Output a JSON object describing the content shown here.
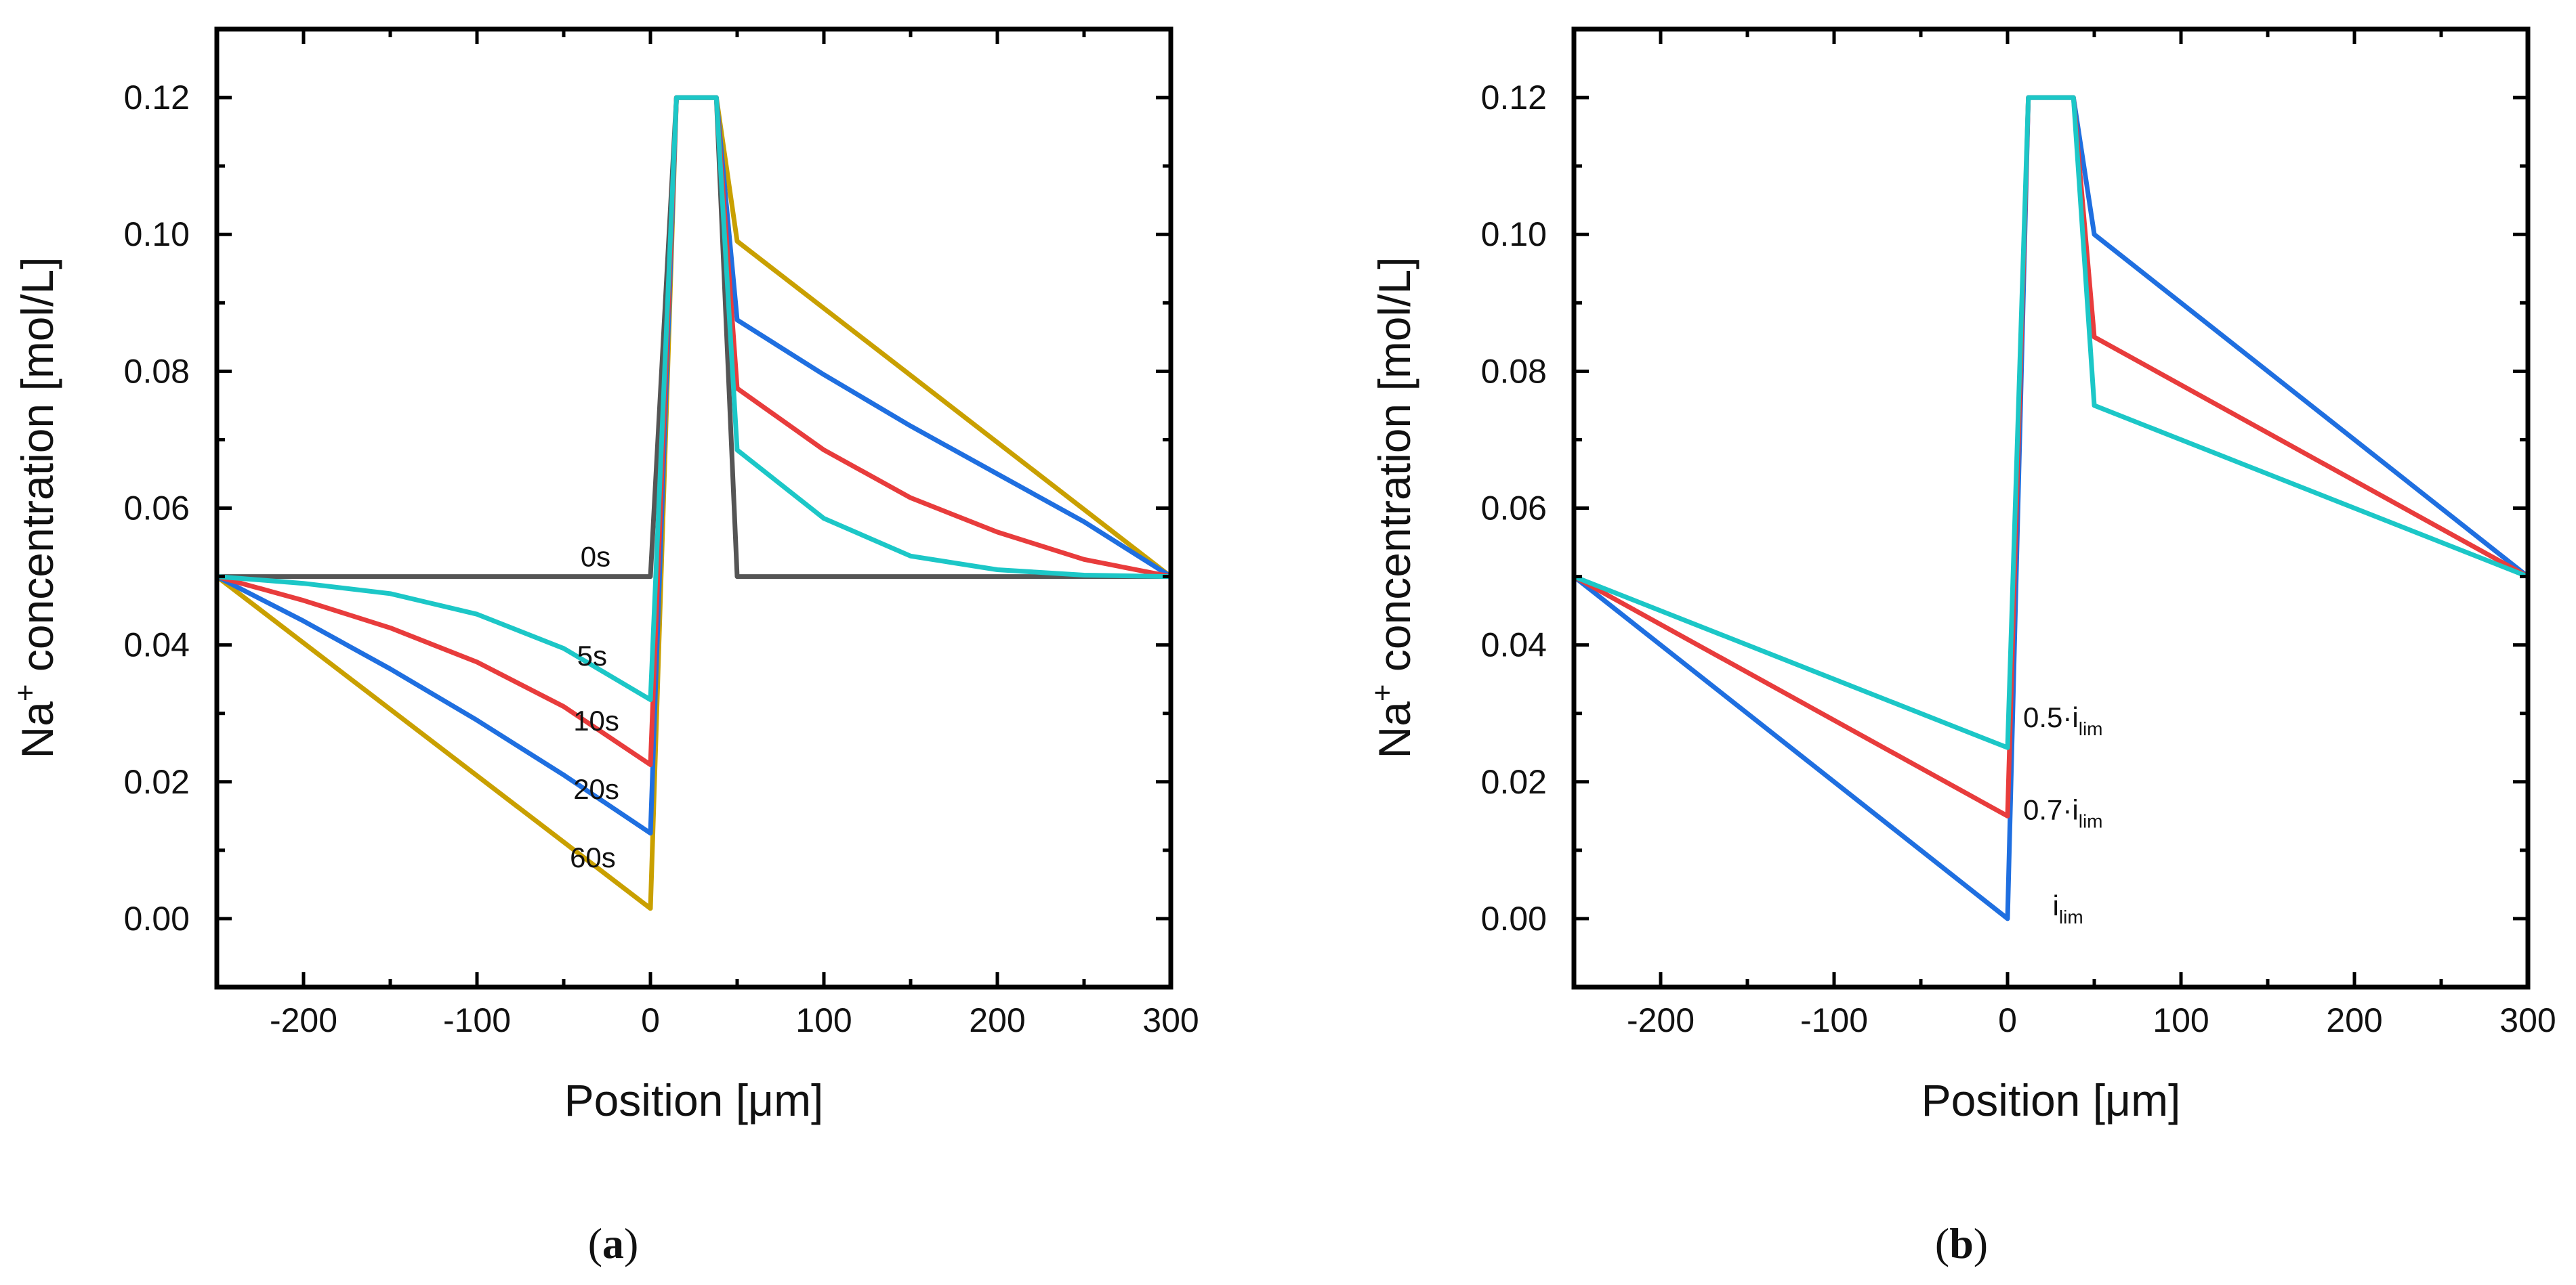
{
  "chart_data": [
    {
      "type": "line",
      "panel": "a",
      "caption": {
        "open": "(",
        "letter": "a",
        "close": ")"
      },
      "xlabel": "Position [μm]",
      "ylabel": {
        "main": "Na",
        "sup": "+",
        "rest": " concentration [mol/L]"
      },
      "xlim": [
        -250,
        300
      ],
      "ylim": [
        -0.01,
        0.13
      ],
      "xticks": [
        -200,
        -100,
        0,
        100,
        200,
        300
      ],
      "xtick_labels": [
        "-200",
        "-100",
        "0",
        "100",
        "200",
        "300"
      ],
      "yticks": [
        0.0,
        0.02,
        0.04,
        0.06,
        0.08,
        0.1,
        0.12
      ],
      "ytick_labels": [
        "0.00",
        "0.02",
        "0.04",
        "0.06",
        "0.08",
        "0.10",
        "0.12"
      ],
      "series": [
        {
          "name": "0s",
          "color": "#555555",
          "points": [
            [
              -250,
              0.05
            ],
            [
              0,
              0.05
            ],
            [
              15,
              0.12
            ],
            [
              38,
              0.12
            ],
            [
              50,
              0.05
            ],
            [
              300,
              0.05
            ]
          ]
        },
        {
          "name": "60s",
          "color": "#C9A000",
          "points": [
            [
              -250,
              0.05
            ],
            [
              0,
              0.0015
            ],
            [
              15,
              0.12
            ],
            [
              38,
              0.12
            ],
            [
              50,
              0.099
            ],
            [
              300,
              0.05
            ]
          ]
        },
        {
          "name": "20s",
          "color": "#1F6FE0",
          "points": [
            [
              -250,
              0.05
            ],
            [
              -200,
              0.0435
            ],
            [
              -150,
              0.0365
            ],
            [
              -100,
              0.029
            ],
            [
              -50,
              0.021
            ],
            [
              0,
              0.0125
            ],
            [
              15,
              0.12
            ],
            [
              38,
              0.12
            ],
            [
              50,
              0.0875
            ],
            [
              100,
              0.0795
            ],
            [
              150,
              0.072
            ],
            [
              200,
              0.065
            ],
            [
              250,
              0.058
            ],
            [
              300,
              0.05
            ]
          ]
        },
        {
          "name": "10s",
          "color": "#E83C3C",
          "points": [
            [
              -250,
              0.05
            ],
            [
              -200,
              0.0465
            ],
            [
              -150,
              0.0425
            ],
            [
              -100,
              0.0375
            ],
            [
              -50,
              0.031
            ],
            [
              0,
              0.0225
            ],
            [
              15,
              0.12
            ],
            [
              38,
              0.12
            ],
            [
              50,
              0.0775
            ],
            [
              100,
              0.0685
            ],
            [
              150,
              0.0615
            ],
            [
              200,
              0.0565
            ],
            [
              250,
              0.0525
            ],
            [
              300,
              0.05
            ]
          ]
        },
        {
          "name": "5s",
          "color": "#1CC7C7",
          "points": [
            [
              -250,
              0.05
            ],
            [
              -200,
              0.049
            ],
            [
              -150,
              0.0475
            ],
            [
              -100,
              0.0445
            ],
            [
              -50,
              0.0395
            ],
            [
              0,
              0.032
            ],
            [
              15,
              0.12
            ],
            [
              38,
              0.12
            ],
            [
              50,
              0.0685
            ],
            [
              100,
              0.0585
            ],
            [
              150,
              0.053
            ],
            [
              200,
              0.051
            ],
            [
              250,
              0.0502
            ],
            [
              300,
              0.05
            ]
          ]
        }
      ],
      "annotations": [
        {
          "text": "0s",
          "x": -23,
          "y": 0.0515
        },
        {
          "text": "5s",
          "x": -25,
          "y": 0.037
        },
        {
          "text": "10s",
          "x": -18,
          "y": 0.0275
        },
        {
          "text": "20s",
          "x": -18,
          "y": 0.0175
        },
        {
          "text": "60s",
          "x": -20,
          "y": 0.0075
        }
      ]
    },
    {
      "type": "line",
      "panel": "b",
      "caption": {
        "open": "(",
        "letter": "b",
        "close": ")"
      },
      "xlabel": "Position [μm]",
      "ylabel": {
        "main": "Na",
        "sup": "+",
        "rest": " concentration [mol/L]"
      },
      "xlim": [
        -250,
        300
      ],
      "ylim": [
        -0.01,
        0.13
      ],
      "xticks": [
        -200,
        -100,
        0,
        100,
        200,
        300
      ],
      "xtick_labels": [
        "-200",
        "-100",
        "0",
        "100",
        "200",
        "300"
      ],
      "yticks": [
        0.0,
        0.02,
        0.04,
        0.06,
        0.08,
        0.1,
        0.12
      ],
      "ytick_labels": [
        "0.00",
        "0.02",
        "0.04",
        "0.06",
        "0.08",
        "0.10",
        "0.12"
      ],
      "series": [
        {
          "name": "i_lim",
          "color": "#1F6FE0",
          "points": [
            [
              -250,
              0.05
            ],
            [
              0,
              0.0
            ],
            [
              12,
              0.12
            ],
            [
              38,
              0.12
            ],
            [
              50,
              0.1
            ],
            [
              300,
              0.05
            ]
          ]
        },
        {
          "name": "0.7·i_lim",
          "color": "#E83C3C",
          "points": [
            [
              -250,
              0.05
            ],
            [
              0,
              0.015
            ],
            [
              12,
              0.12
            ],
            [
              38,
              0.12
            ],
            [
              50,
              0.085
            ],
            [
              300,
              0.05
            ]
          ]
        },
        {
          "name": "0.5·i_lim",
          "color": "#1CC7C7",
          "points": [
            [
              -250,
              0.05
            ],
            [
              0,
              0.025
            ],
            [
              12,
              0.12
            ],
            [
              38,
              0.12
            ],
            [
              50,
              0.075
            ],
            [
              300,
              0.05
            ]
          ]
        }
      ],
      "annotations": [
        {
          "main": "0.5·i",
          "sub": "lim",
          "x": 9,
          "y": 0.028
        },
        {
          "main": "0.7·i",
          "sub": "lim",
          "x": 9,
          "y": 0.0145
        },
        {
          "main": "i",
          "sub": "lim",
          "x": 26,
          "y": 0.0005
        }
      ]
    }
  ]
}
